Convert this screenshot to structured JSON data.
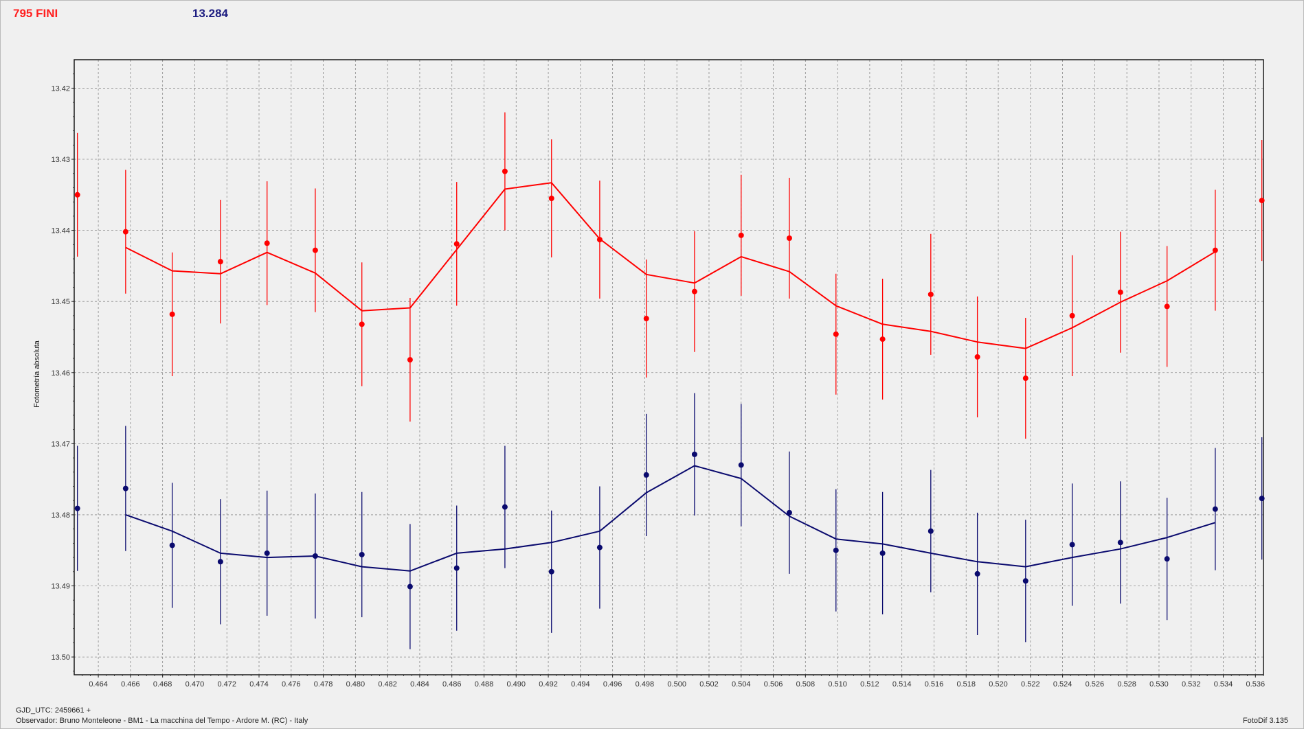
{
  "header": {
    "object_name": "795 FINI",
    "magnitude": "13.284"
  },
  "footer": {
    "gjd": "GJD_UTC: 2459661 +",
    "observer": "Observador: Bruno Monteleone - BM1 - La macchina del Tempo - Ardore M. (RC) - Italy",
    "software": "FotoDif 3.135"
  },
  "colors": {
    "red_series": "#ff0000",
    "blue_series": "#0a0a6e",
    "grid": "#8a8a8a",
    "plot_background": "#f0f0f0"
  },
  "chart_data": {
    "type": "scatter",
    "title": "",
    "xlabel": "",
    "ylabel": "Fotometría absoluta",
    "xlim": [
      0.4625,
      0.5365
    ],
    "ylim": [
      13.416,
      13.5025
    ],
    "y_reversed": true,
    "grid": true,
    "x_ticks": [
      "0.464",
      "0.466",
      "0.468",
      "0.470",
      "0.472",
      "0.474",
      "0.476",
      "0.478",
      "0.480",
      "0.482",
      "0.484",
      "0.486",
      "0.488",
      "0.490",
      "0.492",
      "0.494",
      "0.496",
      "0.498",
      "0.500",
      "0.502",
      "0.504",
      "0.506",
      "0.508",
      "0.510",
      "0.512",
      "0.514",
      "0.516",
      "0.518",
      "0.520",
      "0.522",
      "0.524",
      "0.526",
      "0.528",
      "0.530",
      "0.532",
      "0.534",
      "0.536"
    ],
    "y_ticks": [
      "13.42",
      "13.43",
      "13.44",
      "13.45",
      "13.46",
      "13.47",
      "13.48",
      "13.49",
      "13.50"
    ],
    "series": [
      {
        "color": "#ff0000",
        "x": [
          0.4627,
          0.4657,
          0.4686,
          0.4716,
          0.4745,
          0.4775,
          0.4804,
          0.4834,
          0.4863,
          0.4893,
          0.4922,
          0.4952,
          0.4981,
          0.5011,
          0.504,
          0.507,
          0.5099,
          0.5128,
          0.5158,
          0.5187,
          0.5217,
          0.5246,
          0.5276,
          0.5305,
          0.5335,
          0.5364
        ],
        "y": [
          13.435,
          13.4402,
          13.4518,
          13.4444,
          13.4418,
          13.4428,
          13.4532,
          13.4582,
          13.4419,
          13.4317,
          13.4355,
          13.4413,
          13.4524,
          13.4486,
          13.4407,
          13.4411,
          13.4546,
          13.4553,
          13.449,
          13.4578,
          13.4608,
          13.452,
          13.4487,
          13.4507,
          13.4428,
          13.4358
        ],
        "err": [
          0.0087,
          0.0087,
          0.0087,
          0.0087,
          0.0087,
          0.0087,
          0.0087,
          0.0087,
          0.0087,
          0.0083,
          0.0083,
          0.0083,
          0.0083,
          0.0085,
          0.0085,
          0.0085,
          0.0085,
          0.0085,
          0.0085,
          0.0085,
          0.0085,
          0.0085,
          0.0085,
          0.0085,
          0.0085,
          0.0085
        ],
        "fit_x": [
          0.4657,
          0.4686,
          0.4716,
          0.4745,
          0.4775,
          0.4804,
          0.4834,
          0.4863,
          0.4893,
          0.4922,
          0.4952,
          0.4981,
          0.5011,
          0.504,
          0.507,
          0.5099,
          0.5128,
          0.5158,
          0.5187,
          0.5217,
          0.5246,
          0.5276,
          0.5305,
          0.5335
        ],
        "fit_y": [
          13.4424,
          13.4457,
          13.4461,
          13.4431,
          13.446,
          13.4513,
          13.4509,
          13.4427,
          13.4342,
          13.4333,
          13.4412,
          13.4462,
          13.4474,
          13.4437,
          13.4458,
          13.4506,
          13.4532,
          13.4542,
          13.4557,
          13.4566,
          13.4537,
          13.4501,
          13.4471,
          13.443
        ]
      },
      {
        "color": "#0a0a6e",
        "x": [
          0.4627,
          0.4657,
          0.4686,
          0.4716,
          0.4745,
          0.4775,
          0.4804,
          0.4834,
          0.4863,
          0.4893,
          0.4922,
          0.4952,
          0.4981,
          0.5011,
          0.504,
          0.507,
          0.5099,
          0.5128,
          0.5158,
          0.5187,
          0.5217,
          0.5246,
          0.5276,
          0.5305,
          0.5335,
          0.5364
        ],
        "y": [
          13.4791,
          13.4763,
          13.4843,
          13.4866,
          13.4854,
          13.4858,
          13.4856,
          13.4901,
          13.4875,
          13.4789,
          13.488,
          13.4846,
          13.4744,
          13.4715,
          13.473,
          13.4797,
          13.485,
          13.4854,
          13.4823,
          13.4883,
          13.4893,
          13.4842,
          13.4839,
          13.4862,
          13.4792,
          13.4777
        ],
        "err": [
          0.0088,
          0.0088,
          0.0088,
          0.0088,
          0.0088,
          0.0088,
          0.0088,
          0.0088,
          0.0088,
          0.0086,
          0.0086,
          0.0086,
          0.0086,
          0.0086,
          0.0086,
          0.0086,
          0.0086,
          0.0086,
          0.0086,
          0.0086,
          0.0086,
          0.0086,
          0.0086,
          0.0086,
          0.0086,
          0.0086
        ],
        "fit_x": [
          0.4657,
          0.4686,
          0.4716,
          0.4745,
          0.4775,
          0.4804,
          0.4834,
          0.4863,
          0.4893,
          0.4922,
          0.4952,
          0.4981,
          0.5011,
          0.504,
          0.507,
          0.5099,
          0.5128,
          0.5158,
          0.5187,
          0.5217,
          0.5246,
          0.5276,
          0.5305,
          0.5335
        ],
        "fit_y": [
          13.48,
          13.4823,
          13.4854,
          13.486,
          13.4858,
          13.4873,
          13.4879,
          13.4854,
          13.4848,
          13.4839,
          13.4823,
          13.4769,
          13.4731,
          13.4749,
          13.4802,
          13.4834,
          13.4841,
          13.4854,
          13.4866,
          13.4873,
          13.486,
          13.4848,
          13.4832,
          13.4811
        ]
      }
    ]
  }
}
